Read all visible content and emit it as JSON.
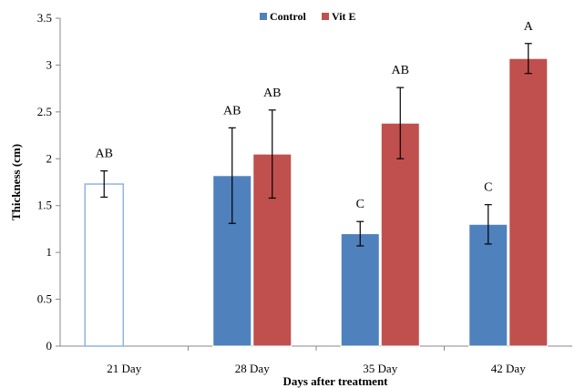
{
  "chart_data": {
    "type": "bar",
    "categories": [
      "21 Day",
      "28 Day",
      "35 Day",
      "42 Day"
    ],
    "series": [
      {
        "name": "Control",
        "values": [
          1.73,
          1.82,
          1.2,
          1.3
        ],
        "errors": [
          0.14,
          0.51,
          0.13,
          0.21
        ],
        "labels": [
          "AB",
          "AB",
          "C",
          "C"
        ],
        "color": "#4F81BD",
        "hollow_index": 0
      },
      {
        "name": "Vit E",
        "values": [
          null,
          2.05,
          2.38,
          3.07
        ],
        "errors": [
          null,
          0.47,
          0.38,
          0.16
        ],
        "labels": [
          "",
          "AB",
          "AB",
          "A"
        ],
        "color": "#C0504D"
      }
    ],
    "xlabel": "Days after treatment",
    "ylabel": "Thickness (cm)",
    "ylim": [
      0,
      3.5
    ],
    "yticks": [
      "0",
      "0.5",
      "1",
      "1.5",
      "2",
      "2.5",
      "3",
      "3.5"
    ],
    "legend_position": "top-center"
  }
}
